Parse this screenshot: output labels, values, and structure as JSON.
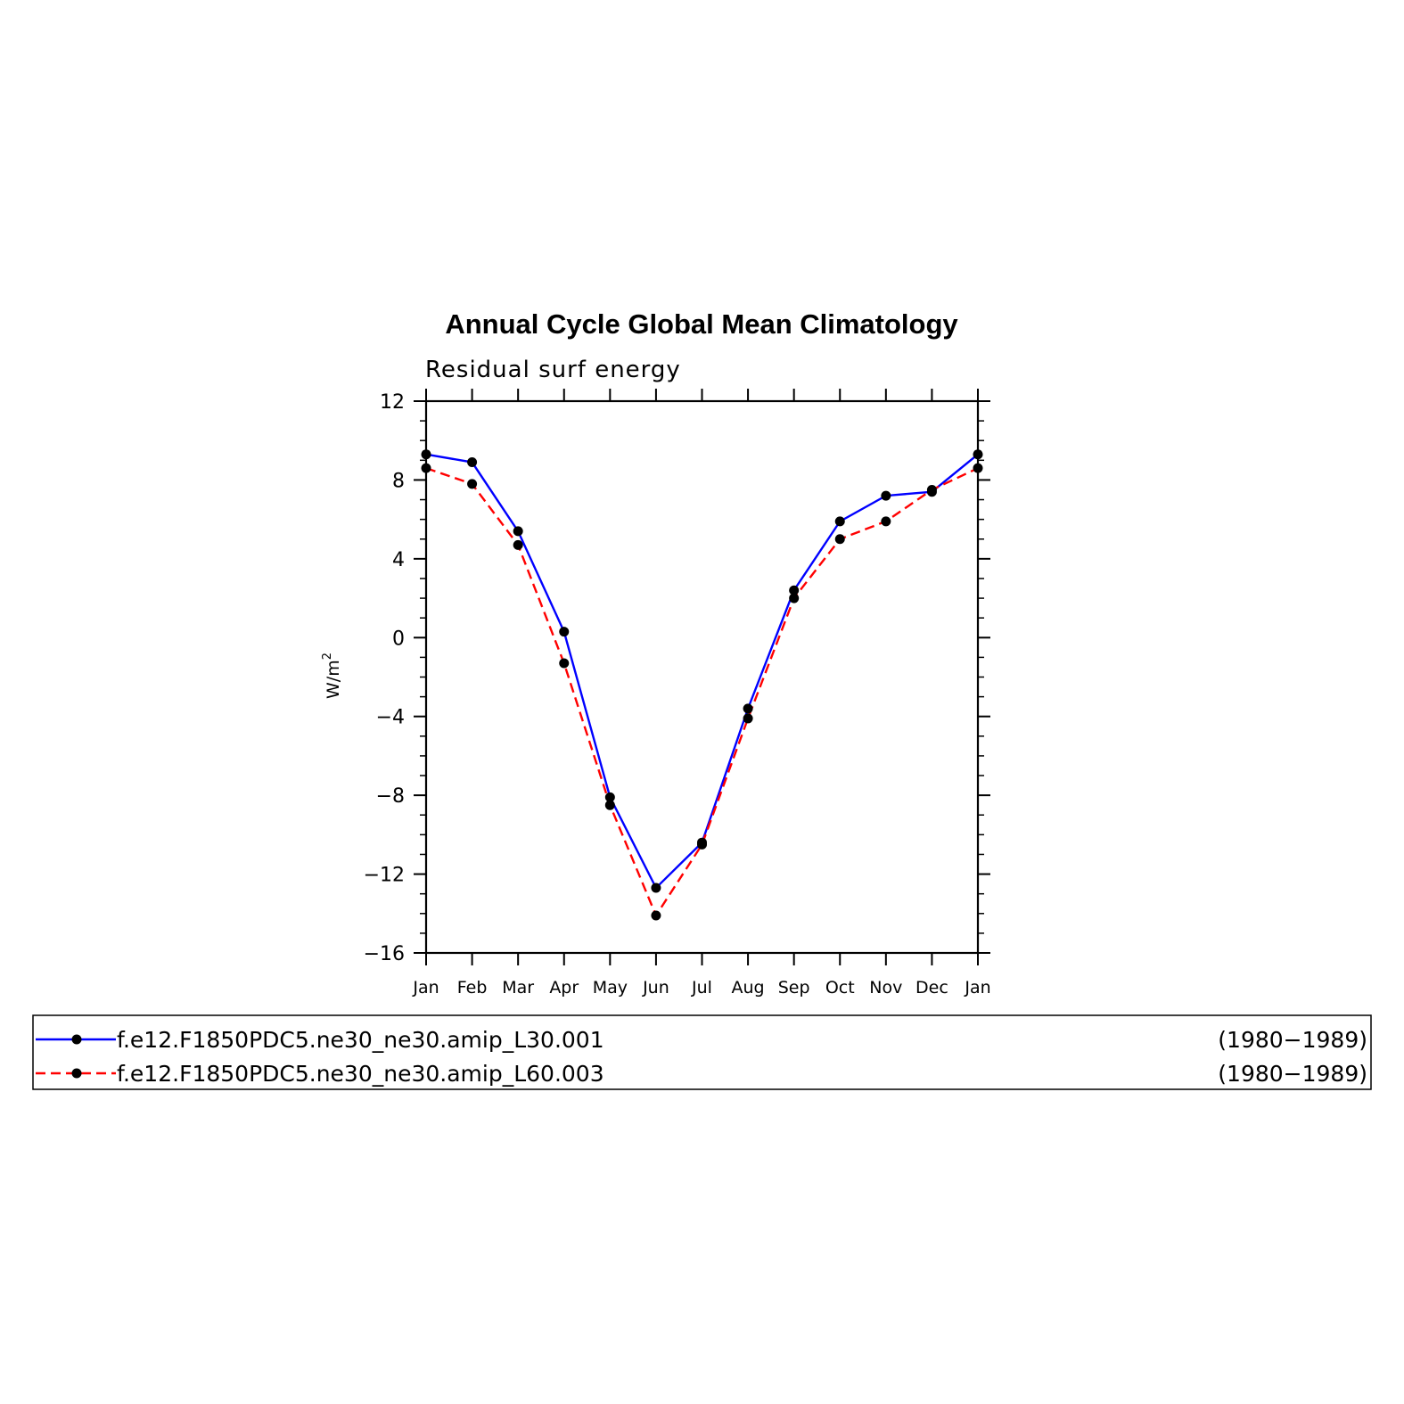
{
  "chart_data": {
    "type": "line",
    "title": "Annual Cycle Global Mean Climatology",
    "subtitle": "Residual surf energy",
    "ylabel": "W/m",
    "ylabel_sup": "2",
    "xlabel": "",
    "ylim": [
      -16,
      12
    ],
    "yticks": [
      12,
      8,
      4,
      0,
      -4,
      -8,
      -12,
      -16
    ],
    "ytick_labels": [
      "12",
      "8",
      "4",
      "0",
      "−4",
      "−8",
      "−12",
      "−16"
    ],
    "yminor_step": 1,
    "categories": [
      "Jan",
      "Feb",
      "Mar",
      "Apr",
      "May",
      "Jun",
      "Jul",
      "Aug",
      "Sep",
      "Oct",
      "Nov",
      "Dec",
      "Jan"
    ],
    "series": [
      {
        "name": "f.e12.F1850PDC5.ne30_ne30.amip_L30.001",
        "period": "(1980−1989)",
        "color": "#0000ff",
        "dash": "solid",
        "values": [
          9.3,
          8.9,
          5.4,
          0.3,
          -8.1,
          -12.7,
          -10.4,
          -3.6,
          2.4,
          5.9,
          7.2,
          7.4,
          9.3
        ]
      },
      {
        "name": "f.e12.F1850PDC5.ne30_ne30.amip_L60.003",
        "period": "(1980−1989)",
        "color": "#ff0000",
        "dash": "dashed",
        "values": [
          8.6,
          7.8,
          4.7,
          -1.3,
          -8.5,
          -14.1,
          -10.5,
          -4.1,
          2.0,
          5.0,
          5.9,
          7.5,
          8.6
        ]
      }
    ],
    "marker_color": "#000000",
    "grid": false,
    "legend_position": "bottom"
  }
}
